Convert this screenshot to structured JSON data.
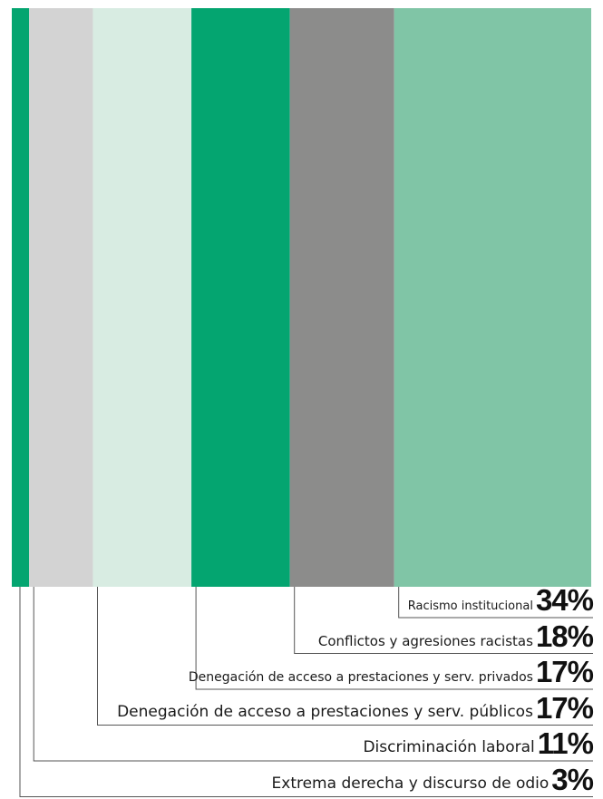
{
  "chart_data": {
    "type": "bar",
    "orientation": "stacked-100",
    "title": "",
    "xlabel": "",
    "ylabel": "",
    "categories": [
      "Extrema derecha y discurso de odio",
      "Discriminación laboral",
      "Denegación de acceso a prestaciones y serv. públicos",
      "Denegación de acceso a prestaciones y serv. privados",
      "Conflictos y agresiones racistas",
      "Racismo institucional"
    ],
    "values": [
      3,
      11,
      17,
      17,
      18,
      34
    ],
    "value_labels": [
      "3%",
      "11%",
      "17%",
      "17%",
      "18%",
      "34%"
    ],
    "colors": [
      "#04a570",
      "#d3d3d3",
      "#d8ece2",
      "#04a570",
      "#8c8c8b",
      "#80c5a6"
    ],
    "label_font_sizes": [
      17,
      17,
      17,
      14,
      15,
      13
    ]
  }
}
